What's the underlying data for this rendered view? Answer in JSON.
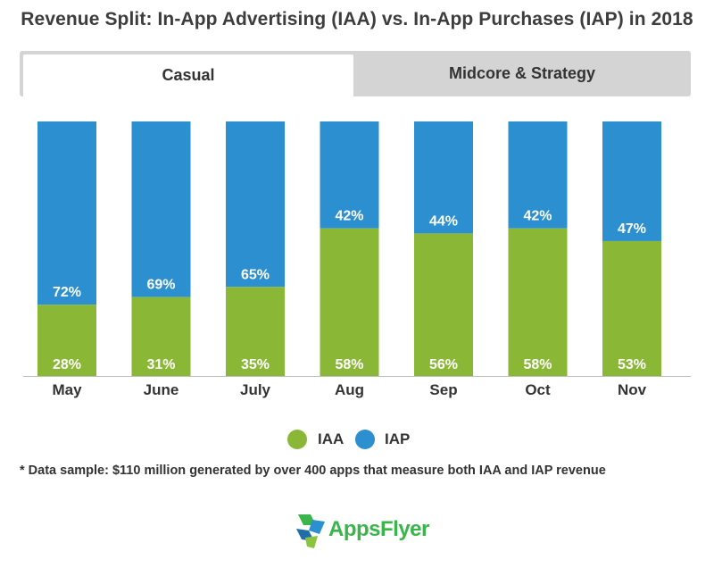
{
  "chart_data": {
    "type": "bar",
    "stacked": true,
    "normalized_percent": true,
    "title": "Revenue Split: In-App Advertising (IAA) vs. In-App Purchases (IAP) in 2018",
    "categories": [
      "May",
      "June",
      "July",
      "Aug",
      "Sep",
      "Oct",
      "Nov"
    ],
    "series": [
      {
        "name": "IAA",
        "color": "#8ab836",
        "values": [
          28,
          31,
          35,
          58,
          56,
          58,
          53
        ]
      },
      {
        "name": "IAP",
        "color": "#2b8fd0",
        "values": [
          72,
          69,
          65,
          42,
          44,
          42,
          47
        ]
      }
    ],
    "value_suffix": "%",
    "ylim": [
      0,
      100
    ],
    "grid": false,
    "legend_position": "bottom"
  },
  "tabs": [
    {
      "label": "Casual",
      "active": true
    },
    {
      "label": "Midcore & Strategy",
      "active": false
    }
  ],
  "footnote": "* Data sample: $110 million generated by over 400 apps that measure both IAA and IAP revenue",
  "logo": {
    "text": "AppsFlyer"
  }
}
